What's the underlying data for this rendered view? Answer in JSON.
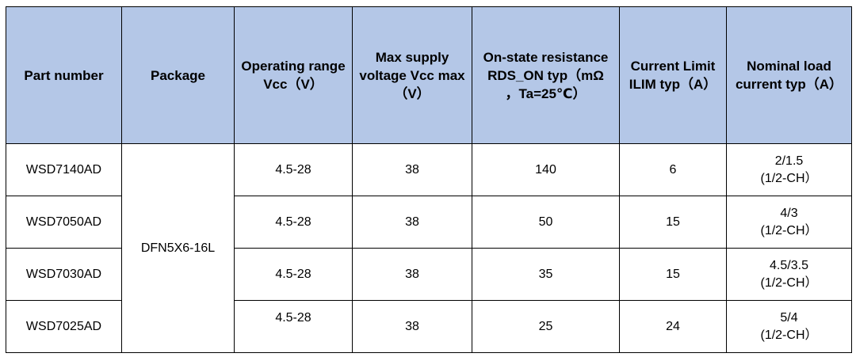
{
  "headers": [
    [
      "Part number"
    ],
    [
      "Package"
    ],
    [
      "Operating range",
      "Vcc（V）"
    ],
    [
      "Max supply",
      "voltage Vcc max",
      "（V）"
    ],
    [
      "On-state resistance",
      "RDS_ON typ（mΩ",
      "，Ta=25℃）"
    ],
    [
      "Current Limit",
      "ILIM typ（A）"
    ],
    [
      "Nominal load",
      "current typ（A）"
    ]
  ],
  "package": "DFN5X6-16L",
  "rows": [
    {
      "part": "WSD7140AD",
      "vcc": "4.5-28",
      "vmax": "38",
      "rds": "140",
      "ilim": "6",
      "load": [
        "2/1.5",
        "(1/2-CH）"
      ]
    },
    {
      "part": "WSD7050AD",
      "vcc": "4.5-28",
      "vmax": "38",
      "rds": "50",
      "ilim": "15",
      "load": [
        "4/3",
        "(1/2-CH）"
      ]
    },
    {
      "part": "WSD7030AD",
      "vcc": "4.5-28",
      "vmax": "38",
      "rds": "35",
      "ilim": "15",
      "load": [
        "4.5/3.5",
        "(1/2-CH）"
      ]
    },
    {
      "part": "WSD7025AD",
      "vcc": "4.5-28",
      "vmax": "38",
      "rds": "25",
      "ilim": "24",
      "load": [
        "5/4",
        "(1/2-CH）"
      ]
    }
  ]
}
